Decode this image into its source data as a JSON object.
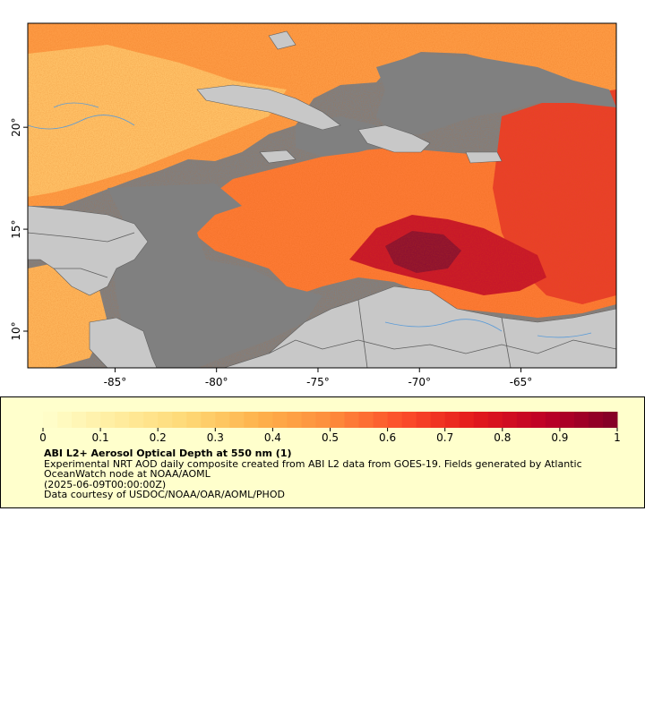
{
  "map": {
    "x_axis": {
      "ticks": [
        "-85°",
        "-80°",
        "-75°",
        "-70°",
        "-65°"
      ],
      "values": [
        -85,
        -80,
        -75,
        -70,
        -65
      ]
    },
    "y_axis": {
      "ticks": [
        "20°",
        "15°",
        "10°"
      ],
      "values": [
        20,
        15,
        10
      ]
    },
    "lon_range": [
      -89.3,
      -60.3
    ],
    "lat_range": [
      8.2,
      25.1
    ],
    "colors": {
      "land": "#c8c8c8",
      "no_data_ocean": "#808080",
      "rivers": "#5a9bd8",
      "borders": "#5e5e5e"
    }
  },
  "legend": {
    "colorbar": {
      "ticks": [
        "0",
        "0.1",
        "0.2",
        "0.3",
        "0.4",
        "0.5",
        "0.6",
        "0.7",
        "0.8",
        "0.9",
        "1"
      ],
      "min": 0,
      "max": 1,
      "colors": [
        "#ffffcc",
        "#ffeda0",
        "#fed976",
        "#feb24c",
        "#fd8d3c",
        "#fc4e2a",
        "#e31a1c",
        "#bd0026",
        "#800026"
      ]
    },
    "title": "ABI L2+ Aerosol Optical Depth at 550 nm (1)",
    "description": "Experimental NRT AOD daily composite created from ABI L2 data from GOES-19. Fields generated by Atlantic OceanWatch node at NOAA/AOML",
    "time": "(2025-06-09T00:00:00Z)",
    "courtesy": "Data courtesy of USDOC/NOAA/OAR/AOML/PHOD"
  }
}
